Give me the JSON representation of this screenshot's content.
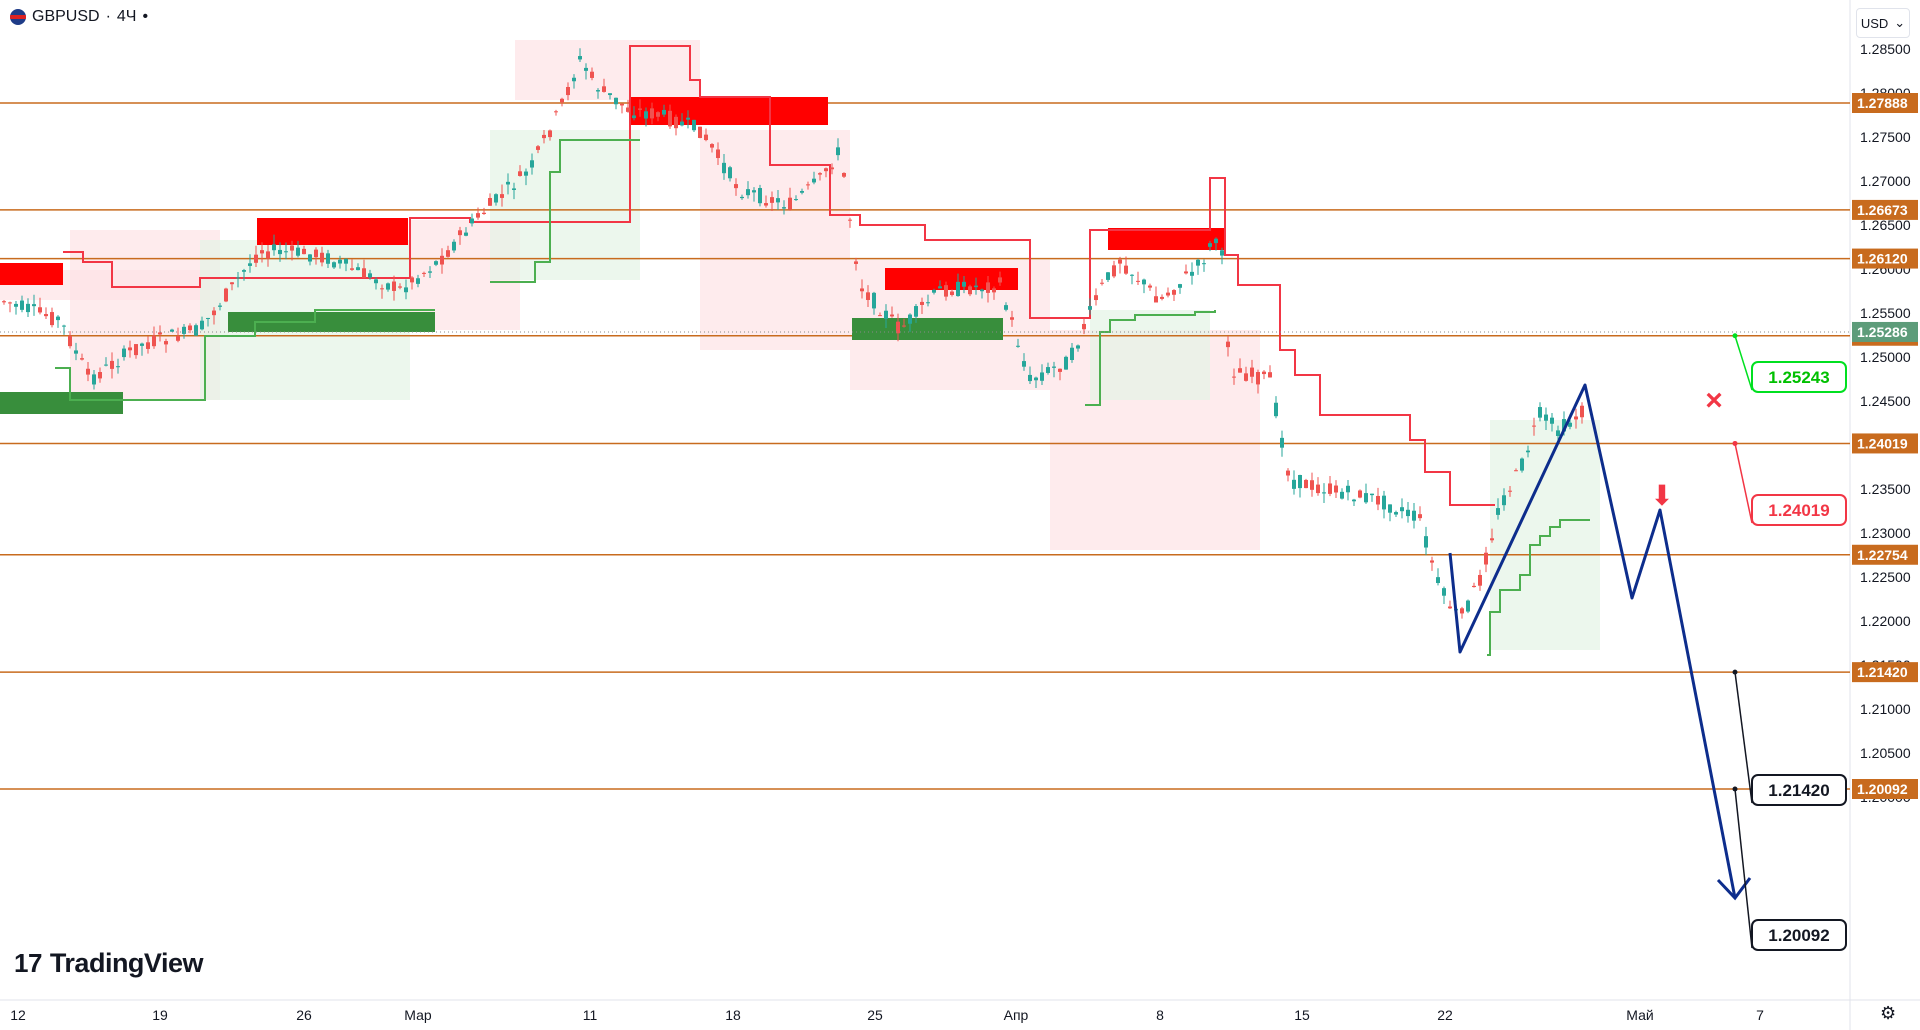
{
  "header": {
    "symbol": "GBPUSD",
    "separator": "·",
    "interval": "4Ч",
    "dot": "•",
    "currency": "USD",
    "currency_caret": "⌄"
  },
  "logo": {
    "mark": "17",
    "text": "TradingView"
  },
  "settings_icon": "⚙",
  "colors": {
    "level": "#c86b1e",
    "resist_red": "#ff0000",
    "support_green": "#388e3c",
    "forecast_blue": "#0d2d8c",
    "bull": "#26a69a",
    "bear": "#ef5350",
    "st_red": "#f23645",
    "st_green": "#4caf50"
  },
  "axis": {
    "price_ticks": [
      "1.28500",
      "1.28000",
      "1.27500",
      "1.27000",
      "1.26500",
      "1.26000",
      "1.25500",
      "1.25000",
      "1.24500",
      "1.24000",
      "1.23500",
      "1.23000",
      "1.22500",
      "1.22000",
      "1.21500",
      "1.21000",
      "1.20500",
      "1.20000"
    ],
    "date_ticks": [
      "12",
      "19",
      "26",
      "Мар",
      "11",
      "18",
      "25",
      "Апр",
      "8",
      "15",
      "22",
      "Май",
      "7"
    ]
  },
  "levels": [
    {
      "label": "1.27888",
      "value": 1.27888
    },
    {
      "label": "1.26673",
      "value": 1.26673
    },
    {
      "label": "1.26120",
      "value": 1.2612
    },
    {
      "label": "1.25243",
      "value": 1.25243
    },
    {
      "label": "1.24019",
      "value": 1.24019
    },
    {
      "label": "1.22754",
      "value": 1.22754
    },
    {
      "label": "1.21420",
      "value": 1.2142
    },
    {
      "label": "1.20092",
      "value": 1.20092
    }
  ],
  "current_price": {
    "label": "1.25286",
    "value": 1.25286
  },
  "callouts": [
    {
      "label": "1.25243",
      "style": "green"
    },
    {
      "label": "1.24019",
      "style": "red"
    },
    {
      "label": "1.21420",
      "style": "black"
    },
    {
      "label": "1.20092",
      "style": "black"
    }
  ],
  "markers": {
    "cross": "×",
    "down_arrow": "⬇"
  }
}
